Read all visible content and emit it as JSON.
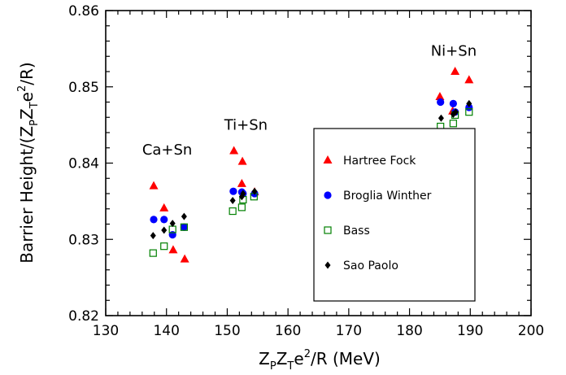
{
  "chart_data": {
    "type": "scatter",
    "xlabel": {
      "main1": "Z",
      "sub1": "P",
      "main2": "Z",
      "sub2": "T",
      "main3": "e",
      "sup": "2",
      "main4": "/R (MeV)"
    },
    "ylabel": {
      "main1": "Barrier Height/(Z",
      "sub1": "P",
      "main2": "Z",
      "sub2": "T",
      "main3": "e",
      "sup": "2",
      "main4": "/R)"
    },
    "xlim": [
      130,
      200
    ],
    "ylim": [
      0.82,
      0.86
    ],
    "x_ticks": [
      130,
      140,
      150,
      160,
      170,
      180,
      190,
      200
    ],
    "y_ticks": [
      0.82,
      0.83,
      0.84,
      0.85,
      0.86
    ],
    "x_tick_labels": [
      "130",
      "140",
      "150",
      "160",
      "170",
      "180",
      "190",
      "200"
    ],
    "y_tick_labels": [
      "0.82",
      "0.83",
      "0.84",
      "0.85",
      "0.86"
    ],
    "grid": false,
    "legend_position": "right",
    "annotations": [
      {
        "text": "Ca+Sn",
        "x": 136.0,
        "y": 0.8411
      },
      {
        "text": "Ti+Sn",
        "x": 149.5,
        "y": 0.8444
      },
      {
        "text": "Ni+Sn",
        "x": 183.5,
        "y": 0.8541
      }
    ],
    "series": [
      {
        "name": "Hartree Fock",
        "marker": "triangle",
        "color": "#ff0000",
        "points": [
          [
            137.9,
            0.837
          ],
          [
            139.6,
            0.8341
          ],
          [
            141.1,
            0.8286
          ],
          [
            143.0,
            0.8274
          ],
          [
            151.1,
            0.8416
          ],
          [
            152.5,
            0.8402
          ],
          [
            152.4,
            0.8373
          ],
          [
            154.5,
            0.8362
          ],
          [
            185.0,
            0.8487
          ],
          [
            187.1,
            0.8468
          ],
          [
            187.5,
            0.852
          ],
          [
            189.8,
            0.8509
          ]
        ]
      },
      {
        "name": "Broglia Winther",
        "marker": "circle",
        "color": "#0000ff",
        "points": [
          [
            137.9,
            0.8326
          ],
          [
            139.6,
            0.8326
          ],
          [
            141.0,
            0.8306
          ],
          [
            142.9,
            0.8316
          ],
          [
            151.0,
            0.8363
          ],
          [
            152.4,
            0.8362
          ],
          [
            152.6,
            0.836
          ],
          [
            154.5,
            0.836
          ],
          [
            185.1,
            0.848
          ],
          [
            187.2,
            0.8478
          ],
          [
            187.5,
            0.8467
          ],
          [
            189.8,
            0.8473
          ]
        ]
      },
      {
        "name": "Bass",
        "marker": "square-open",
        "color": "#008000",
        "points": [
          [
            137.8,
            0.8282
          ],
          [
            139.6,
            0.8291
          ],
          [
            141.0,
            0.8313
          ],
          [
            142.9,
            0.8316
          ],
          [
            150.9,
            0.8337
          ],
          [
            152.4,
            0.8342
          ],
          [
            152.6,
            0.8352
          ],
          [
            154.4,
            0.8356
          ],
          [
            185.1,
            0.8448
          ],
          [
            187.2,
            0.8452
          ],
          [
            187.5,
            0.8463
          ],
          [
            189.8,
            0.8467
          ]
        ]
      },
      {
        "name": "Sao Paolo",
        "marker": "diamond",
        "color": "#000000",
        "points": [
          [
            137.8,
            0.8305
          ],
          [
            139.6,
            0.8312
          ],
          [
            141.0,
            0.8321
          ],
          [
            142.9,
            0.833
          ],
          [
            150.9,
            0.8351
          ],
          [
            152.4,
            0.8356
          ],
          [
            152.6,
            0.836
          ],
          [
            154.5,
            0.8363
          ],
          [
            185.2,
            0.8459
          ],
          [
            187.2,
            0.8464
          ],
          [
            187.6,
            0.8467
          ],
          [
            189.8,
            0.8478
          ]
        ]
      }
    ]
  }
}
